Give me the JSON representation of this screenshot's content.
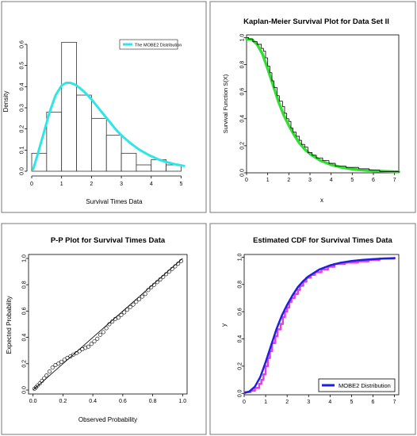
{
  "chart_data": [
    {
      "type": "histogram",
      "title": "",
      "xlabel": "Survival Times Data",
      "ylabel": "Density",
      "xlim": [
        0,
        5.2
      ],
      "ylim": [
        0,
        0.63
      ],
      "xticks": [
        "0",
        "1",
        "2",
        "3",
        "4",
        "5"
      ],
      "yticks": [
        "0.0",
        "0.1",
        "0.2",
        "0.3",
        "0.4",
        "0.5",
        "0.6"
      ],
      "legend": {
        "position": "top-right",
        "entries": [
          "The MOBE2 Distribution"
        ]
      },
      "bins": [
        {
          "x0": 0.0,
          "x1": 0.5,
          "density": 0.085
        },
        {
          "x0": 0.5,
          "x1": 1.0,
          "density": 0.28
        },
        {
          "x0": 1.0,
          "x1": 1.5,
          "density": 0.61
        },
        {
          "x0": 1.5,
          "x1": 2.0,
          "density": 0.36
        },
        {
          "x0": 2.0,
          "x1": 2.5,
          "density": 0.25
        },
        {
          "x0": 2.5,
          "x1": 3.0,
          "density": 0.17
        },
        {
          "x0": 3.0,
          "x1": 3.5,
          "density": 0.085
        },
        {
          "x0": 3.5,
          "x1": 4.0,
          "density": 0.03
        },
        {
          "x0": 4.0,
          "x1": 4.5,
          "density": 0.055
        },
        {
          "x0": 4.5,
          "x1": 5.0,
          "density": 0.03
        }
      ],
      "series": [
        {
          "name": "The MOBE2 Distribution",
          "color": "#2ee6e6",
          "x": [
            0.05,
            0.2,
            0.4,
            0.6,
            0.8,
            1.0,
            1.15,
            1.3,
            1.45,
            1.6,
            1.8,
            2.0,
            2.2,
            2.4,
            2.6,
            2.8,
            3.0,
            3.3,
            3.6,
            3.9,
            4.2,
            4.5,
            4.8,
            5.1
          ],
          "y": [
            0.01,
            0.08,
            0.18,
            0.28,
            0.36,
            0.405,
            0.418,
            0.418,
            0.41,
            0.395,
            0.37,
            0.34,
            0.305,
            0.27,
            0.235,
            0.2,
            0.17,
            0.133,
            0.102,
            0.078,
            0.058,
            0.044,
            0.033,
            0.025
          ]
        }
      ]
    },
    {
      "type": "line",
      "title": "Kaplan-Meier Survival Plot for Data Set II",
      "xlabel": "x",
      "ylabel": "Survival  Function S(X)",
      "xlim": [
        0,
        7.2
      ],
      "ylim": [
        0,
        1.02
      ],
      "xticks": [
        "0",
        "1",
        "2",
        "3",
        "4",
        "5",
        "6",
        "7"
      ],
      "yticks": [
        "0.0",
        "0.2",
        "0.4",
        "0.6",
        "0.8",
        "1.0"
      ],
      "series": [
        {
          "name": "",
          "color": "#33dd33",
          "x": [
            0,
            0.25,
            0.5,
            0.75,
            1.0,
            1.25,
            1.5,
            1.75,
            2.0,
            2.25,
            2.5,
            2.75,
            3.0,
            3.5,
            4.0,
            4.5,
            5.0,
            5.5,
            6.0,
            6.5,
            7.0,
            7.2
          ],
          "y": [
            0.99,
            0.985,
            0.95,
            0.88,
            0.77,
            0.65,
            0.53,
            0.43,
            0.35,
            0.28,
            0.22,
            0.175,
            0.14,
            0.09,
            0.06,
            0.04,
            0.028,
            0.02,
            0.015,
            0.011,
            0.008,
            0.007
          ]
        },
        {
          "name": "",
          "color": "#000000",
          "x": [
            0,
            0.1,
            0.3,
            0.5,
            0.7,
            0.8,
            0.9,
            1.0,
            1.1,
            1.2,
            1.3,
            1.45,
            1.55,
            1.7,
            1.8,
            1.9,
            2.0,
            2.1,
            2.2,
            2.35,
            2.5,
            2.6,
            2.75,
            2.9,
            3.1,
            3.3,
            3.6,
            3.9,
            4.2,
            4.7,
            5.3,
            5.8,
            6.3,
            7.0,
            7.2
          ],
          "y": [
            1.0,
            0.99,
            0.97,
            0.95,
            0.92,
            0.9,
            0.85,
            0.79,
            0.74,
            0.68,
            0.63,
            0.57,
            0.53,
            0.49,
            0.44,
            0.4,
            0.38,
            0.33,
            0.3,
            0.27,
            0.24,
            0.21,
            0.19,
            0.15,
            0.13,
            0.11,
            0.09,
            0.07,
            0.05,
            0.04,
            0.03,
            0.02,
            0.01,
            0.01,
            0.005
          ]
        }
      ]
    },
    {
      "type": "scatter",
      "title": "P-P Plot for Survival Times Data",
      "xlabel": "Observed Probability",
      "ylabel": "Expected Probability",
      "xlim": [
        -0.03,
        1.03
      ],
      "ylim": [
        -0.03,
        1.03
      ],
      "xticks": [
        "0.0",
        "0.2",
        "0.4",
        "0.6",
        "0.8",
        "1.0"
      ],
      "yticks": [
        "0.0",
        "0.2",
        "0.4",
        "0.6",
        "0.8",
        "1.0"
      ],
      "reference_line": [
        [
          0,
          0
        ],
        [
          1,
          1
        ]
      ],
      "points": {
        "x": [
          0.01,
          0.02,
          0.03,
          0.045,
          0.06,
          0.075,
          0.09,
          0.11,
          0.13,
          0.15,
          0.17,
          0.19,
          0.21,
          0.23,
          0.25,
          0.27,
          0.29,
          0.31,
          0.33,
          0.35,
          0.37,
          0.39,
          0.41,
          0.43,
          0.45,
          0.47,
          0.49,
          0.51,
          0.53,
          0.55,
          0.57,
          0.59,
          0.61,
          0.63,
          0.65,
          0.67,
          0.69,
          0.71,
          0.73,
          0.75,
          0.77,
          0.79,
          0.81,
          0.83,
          0.85,
          0.87,
          0.89,
          0.91,
          0.93,
          0.95,
          0.97,
          0.99
        ],
        "y": [
          0.01,
          0.02,
          0.035,
          0.05,
          0.07,
          0.09,
          0.11,
          0.14,
          0.17,
          0.19,
          0.2,
          0.215,
          0.23,
          0.245,
          0.255,
          0.27,
          0.28,
          0.295,
          0.31,
          0.32,
          0.33,
          0.35,
          0.37,
          0.39,
          0.42,
          0.44,
          0.47,
          0.5,
          0.52,
          0.54,
          0.55,
          0.57,
          0.59,
          0.61,
          0.63,
          0.65,
          0.67,
          0.69,
          0.71,
          0.73,
          0.76,
          0.78,
          0.8,
          0.82,
          0.84,
          0.86,
          0.88,
          0.9,
          0.92,
          0.94,
          0.96,
          0.98
        ]
      }
    },
    {
      "type": "line",
      "title": "Estimated CDF for Survival Times Data",
      "xlabel": "x",
      "ylabel": "y",
      "xlim": [
        0,
        7.2
      ],
      "ylim": [
        -0.01,
        1.02
      ],
      "xticks": [
        "0",
        "1",
        "2",
        "3",
        "4",
        "5",
        "6",
        "7"
      ],
      "yticks": [
        "0.0",
        "0.2",
        "0.4",
        "0.6",
        "0.8",
        "1.0"
      ],
      "legend": {
        "position": "bottom-right",
        "entries": [
          "MOBE2 Distribution"
        ]
      },
      "series": [
        {
          "name": "",
          "color": "#e040e0",
          "x": [
            0.05,
            0.3,
            0.5,
            0.7,
            0.8,
            0.9,
            1.0,
            1.1,
            1.2,
            1.3,
            1.45,
            1.55,
            1.7,
            1.8,
            1.9,
            2.0,
            2.1,
            2.2,
            2.35,
            2.5,
            2.6,
            2.75,
            2.9,
            3.1,
            3.3,
            3.6,
            3.9,
            4.2,
            4.7,
            5.3,
            5.8,
            6.3,
            7.0
          ],
          "y": [
            0.01,
            0.02,
            0.04,
            0.07,
            0.1,
            0.14,
            0.2,
            0.26,
            0.31,
            0.37,
            0.42,
            0.47,
            0.51,
            0.56,
            0.6,
            0.63,
            0.67,
            0.7,
            0.73,
            0.76,
            0.79,
            0.82,
            0.85,
            0.87,
            0.89,
            0.91,
            0.93,
            0.95,
            0.96,
            0.97,
            0.98,
            0.99,
            0.995
          ]
        },
        {
          "name": "MOBE2 Distribution",
          "color": "#1f1fe0",
          "x": [
            0.05,
            0.25,
            0.5,
            0.75,
            1.0,
            1.25,
            1.5,
            1.75,
            2.0,
            2.25,
            2.5,
            2.75,
            3.0,
            3.5,
            4.0,
            4.5,
            5.0,
            5.5,
            6.0,
            6.5,
            7.0
          ],
          "y": [
            0.005,
            0.015,
            0.05,
            0.12,
            0.23,
            0.35,
            0.47,
            0.57,
            0.65,
            0.72,
            0.78,
            0.825,
            0.86,
            0.91,
            0.94,
            0.96,
            0.972,
            0.98,
            0.986,
            0.99,
            0.993
          ]
        }
      ]
    }
  ]
}
